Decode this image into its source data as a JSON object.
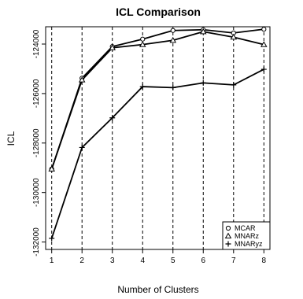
{
  "chart_data": {
    "type": "line",
    "title": "ICL Comparison",
    "xlabel": "Number of Clusters",
    "ylabel": "ICL",
    "x": [
      1,
      2,
      3,
      4,
      5,
      6,
      7,
      8
    ],
    "xlim": [
      0.8,
      8.2
    ],
    "ylim": [
      -132300,
      -123300
    ],
    "yticks": [
      -132000,
      -130000,
      -128000,
      -126000,
      -124000
    ],
    "grid": "vertical dashed lines at each x",
    "legend_position": "bottom-right",
    "series": [
      {
        "name": "MCAR",
        "marker": "circle",
        "values": [
          -129050,
          -125380,
          -124100,
          -123800,
          -123450,
          -123420,
          -123550,
          -123400
        ]
      },
      {
        "name": "MNARz",
        "marker": "triangle",
        "values": [
          -129050,
          -125450,
          -124150,
          -124020,
          -123850,
          -123500,
          -123720,
          -124020
        ]
      },
      {
        "name": "MNARyz",
        "marker": "plus",
        "values": [
          -131850,
          -128180,
          -126980,
          -125720,
          -125760,
          -125570,
          -125650,
          -125020
        ]
      }
    ]
  }
}
